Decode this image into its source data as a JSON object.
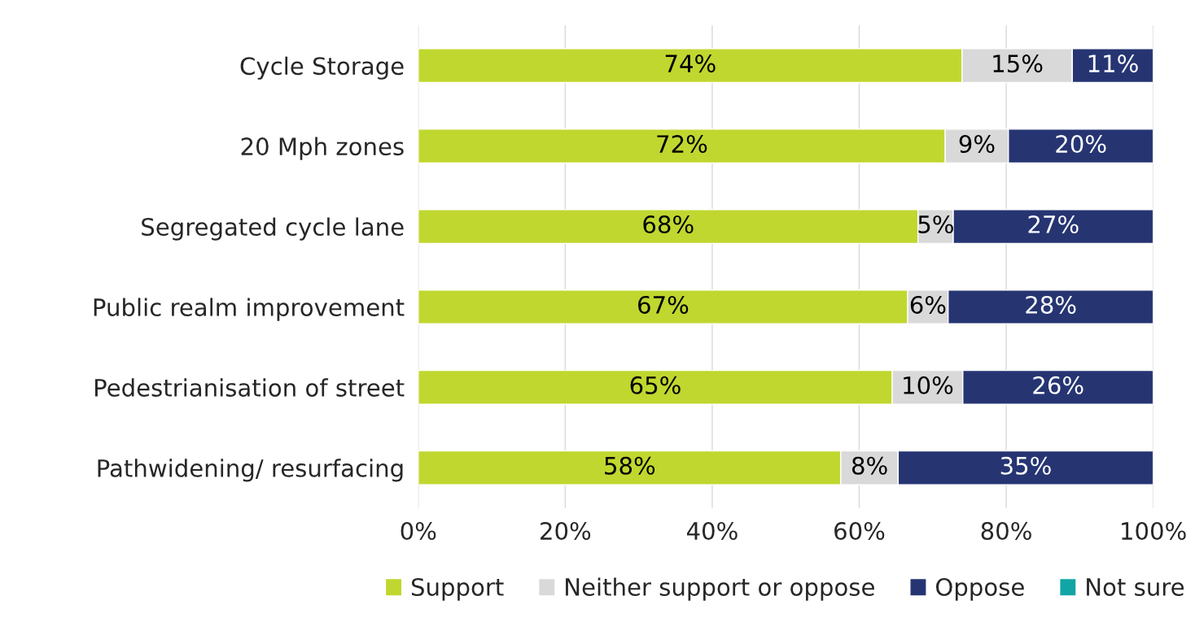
{
  "chart_data": {
    "type": "bar",
    "orientation": "horizontal",
    "stacked": true,
    "categories": [
      "Cycle Storage",
      "20 Mph zones",
      "Segregated cycle lane",
      "Public realm improvement",
      "Pedestrianisation of street",
      "Pathwidening/ resurfacing"
    ],
    "series": [
      {
        "name": "Support",
        "color": "#c0d72f",
        "values": [
          74,
          71.7,
          68,
          66.6,
          64.5,
          57.5
        ],
        "value_labels": [
          "74%",
          "72%",
          "68%",
          "67%",
          "65%",
          "58%"
        ]
      },
      {
        "name": "Neither support or oppose",
        "color": "#d9d9d9",
        "values": [
          15,
          8.6,
          4.8,
          5.5,
          9.6,
          7.8
        ],
        "value_labels": [
          "15%",
          "9%",
          "5%",
          "6%",
          "10%",
          "8%"
        ]
      },
      {
        "name": "Oppose",
        "color": "#263572",
        "values": [
          11,
          19.7,
          27.2,
          27.9,
          25.9,
          34.7
        ],
        "value_labels": [
          "11%",
          "20%",
          "27%",
          "28%",
          "26%",
          "35%"
        ]
      },
      {
        "name": "Not sure",
        "color": "#12a5a5",
        "values": [
          null,
          null,
          null,
          null,
          null,
          null
        ]
      }
    ],
    "xlim": [
      0,
      100
    ],
    "xticks": [
      {
        "value": 0,
        "label": "0%"
      },
      {
        "value": 20,
        "label": "20%"
      },
      {
        "value": 40,
        "label": "40%"
      },
      {
        "value": 60,
        "label": "60%"
      },
      {
        "value": 80,
        "label": "80%"
      },
      {
        "value": 100,
        "label": "100%"
      }
    ],
    "grid": "x",
    "legend": "bottom"
  }
}
